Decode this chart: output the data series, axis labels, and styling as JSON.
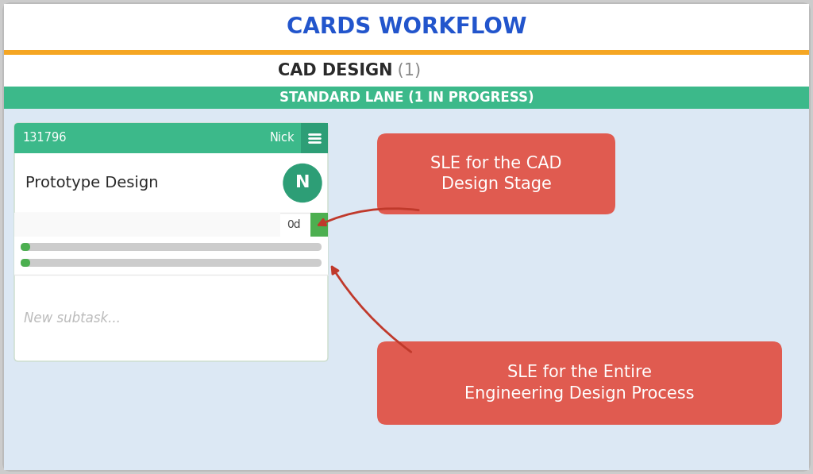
{
  "title": "CARDS WORKFLOW",
  "title_color": "#2255cc",
  "title_fontsize": 20,
  "orange_bar_color": "#F5A623",
  "orange_bar_height": 6,
  "section_title": "CAD DESIGN",
  "section_count": " (1)",
  "section_title_color": "#2a2a2a",
  "section_count_color": "#888888",
  "section_fontsize": 15,
  "lane_text": "STANDARD LANE (1 IN PROGRESS)",
  "lane_bg": "#3cb98a",
  "lane_text_color": "#ffffff",
  "lane_fontsize": 12,
  "bg_color": "#dce8f4",
  "card_header_bg": "#3cb98a",
  "card_header_dark_bg": "#2d9e76",
  "card_header_text_color": "#ffffff",
  "card_id": "131796",
  "card_assignee": "Nick",
  "card_title": "Prototype Design",
  "card_title_fontsize": 14,
  "card_avatar_bg": "#2d9e76",
  "card_avatar_letter": "N",
  "card_days": "0d",
  "card_days_bg": "#4caf50",
  "card_bg": "#ffffff",
  "card_border_color": "#ccddcc",
  "progress_bar_bg": "#cccccc",
  "progress_fill": "#4caf50",
  "subtask_placeholder": "New subtask...",
  "subtask_text_color": "#bbbbbb",
  "annotation1_text": "SLE for the CAD\nDesign Stage",
  "annotation2_text": "SLE for the Entire\nEngineering Design Process",
  "annotation_bg": "#e05b50",
  "annotation_text_color": "#ffffff",
  "annotation_fontsize": 15,
  "arrow_color": "#c0392b",
  "outer_bg_color": "#cccccc",
  "white_section_bg": "#ffffff",
  "fig_width": 10.24,
  "fig_height": 5.97,
  "dpi": 100
}
